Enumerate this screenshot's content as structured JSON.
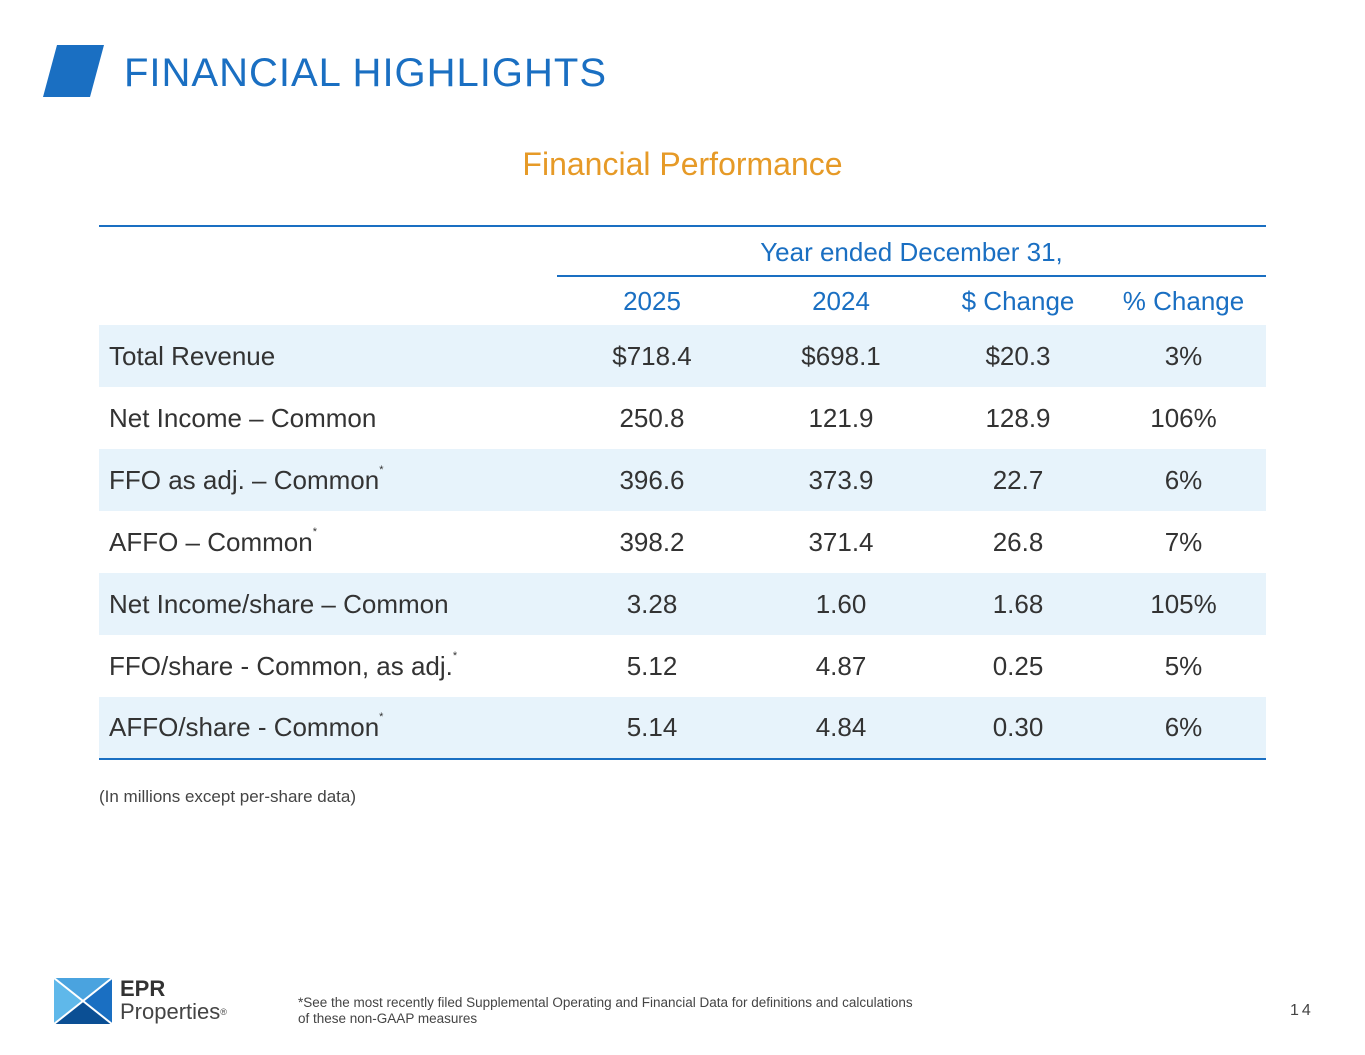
{
  "header": {
    "title": "FINANCIAL HIGHLIGHTS",
    "accent_color": "#1a6fc2"
  },
  "section": {
    "title": "Financial Performance",
    "color": "#e69a27"
  },
  "table": {
    "group_header": "Year ended December 31,",
    "columns": [
      "2025",
      "2024",
      "$ Change",
      "% Change"
    ],
    "rows": [
      {
        "label": "Total Revenue",
        "marker": "",
        "values": [
          "$718.4",
          "$698.1",
          "$20.3",
          "3%"
        ]
      },
      {
        "label": "Net Income – Common",
        "marker": "",
        "values": [
          "250.8",
          "121.9",
          "128.9",
          "106%"
        ]
      },
      {
        "label": "FFO as adj. – Common",
        "marker": "*",
        "values": [
          "396.6",
          "373.9",
          "22.7",
          "6%"
        ]
      },
      {
        "label": "AFFO – Common",
        "marker": "*",
        "values": [
          "398.2",
          "371.4",
          "26.8",
          "7%"
        ]
      },
      {
        "label": "Net Income/share – Common",
        "marker": "",
        "values": [
          "3.28",
          "1.60",
          "1.68",
          "105%"
        ]
      },
      {
        "label": "FFO/share - Common, as adj.",
        "marker": "*",
        "values": [
          "5.12",
          "4.87",
          "0.25",
          "5%"
        ]
      },
      {
        "label": "AFFO/share - Common",
        "marker": "*",
        "values": [
          "5.14",
          "4.84",
          "0.30",
          "6%"
        ]
      }
    ]
  },
  "units_note": "(In millions except per-share data)",
  "footer": {
    "logo_line1": "EPR",
    "logo_line2": "Properties",
    "logo_mark": "®",
    "footnote_line1": "*See the most recently filed Supplemental Operating and Financial Data for definitions and calculations",
    "footnote_line2": "of these non-GAAP measures",
    "page_number": "14"
  }
}
